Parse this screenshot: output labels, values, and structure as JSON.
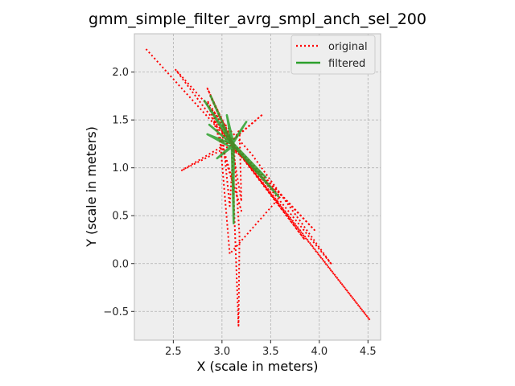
{
  "chart_data": {
    "type": "line",
    "title": "gmm_simple_filter_avrg_smpl_anch_sel_200",
    "xlabel": "X (scale in meters)",
    "ylabel": "Y (scale in meters)",
    "xlim": [
      2.1,
      4.63
    ],
    "ylim": [
      -0.8,
      2.4
    ],
    "xticks": [
      2.5,
      3.0,
      3.5,
      4.0,
      4.5
    ],
    "xtick_labels": [
      "2.5",
      "3.0",
      "3.5",
      "4.0",
      "4.5"
    ],
    "yticks": [
      -0.5,
      0.0,
      0.5,
      1.0,
      1.5,
      2.0
    ],
    "ytick_labels": [
      "−0.5",
      "0.0",
      "0.5",
      "1.0",
      "1.5",
      "2.0"
    ],
    "grid": true,
    "legend_position": "top-right",
    "colors": {
      "original": "#ff0000",
      "filtered": "#2ca02c",
      "plot_bg": "#eeeeee",
      "grid": "#b0b0b0"
    },
    "series": [
      {
        "name": "original",
        "style": "dotted",
        "x": [
          2.22,
          3.15,
          4.52,
          3.1,
          2.52,
          3.3,
          4.12,
          3.12,
          2.85,
          3.1,
          3.42,
          3.08,
          2.58,
          3.12,
          3.18,
          3.17,
          3.1,
          2.98,
          3.08,
          3.6,
          3.05,
          2.9,
          3.2,
          2.85,
          3.12,
          3.0,
          3.15,
          3.1,
          3.18,
          3.2,
          3.1,
          2.88,
          3.12,
          3.55,
          3.1,
          3.95,
          3.12,
          3.08,
          3.0,
          3.85,
          3.1
        ],
        "y": [
          2.24,
          1.2,
          -0.59,
          1.25,
          2.03,
          1.15,
          0.0,
          1.25,
          1.83,
          1.28,
          1.56,
          1.27,
          0.97,
          1.25,
          0.3,
          -0.65,
          1.25,
          1.3,
          0.1,
          0.7,
          1.27,
          1.6,
          0.55,
          1.7,
          1.25,
          1.45,
          1.15,
          1.25,
          1.4,
          0.65,
          1.25,
          1.75,
          1.2,
          0.75,
          1.25,
          0.35,
          1.25,
          0.6,
          1.4,
          0.25,
          1.25
        ]
      },
      {
        "name": "filtered",
        "style": "solid",
        "x": [
          2.88,
          3.1,
          3.25,
          3.08,
          2.95,
          3.12,
          3.58,
          3.1,
          2.82,
          3.12,
          3.12,
          3.1,
          2.87,
          3.1,
          3.2,
          3.1,
          3.05,
          3.12,
          3.45,
          3.1,
          2.95,
          3.1,
          2.85,
          3.12
        ],
        "y": [
          1.76,
          1.25,
          1.48,
          1.2,
          1.1,
          1.25,
          0.7,
          1.25,
          1.7,
          1.25,
          0.42,
          1.25,
          1.45,
          1.25,
          1.15,
          1.25,
          1.55,
          1.25,
          0.9,
          1.25,
          1.6,
          1.25,
          1.35,
          1.2
        ]
      }
    ]
  }
}
